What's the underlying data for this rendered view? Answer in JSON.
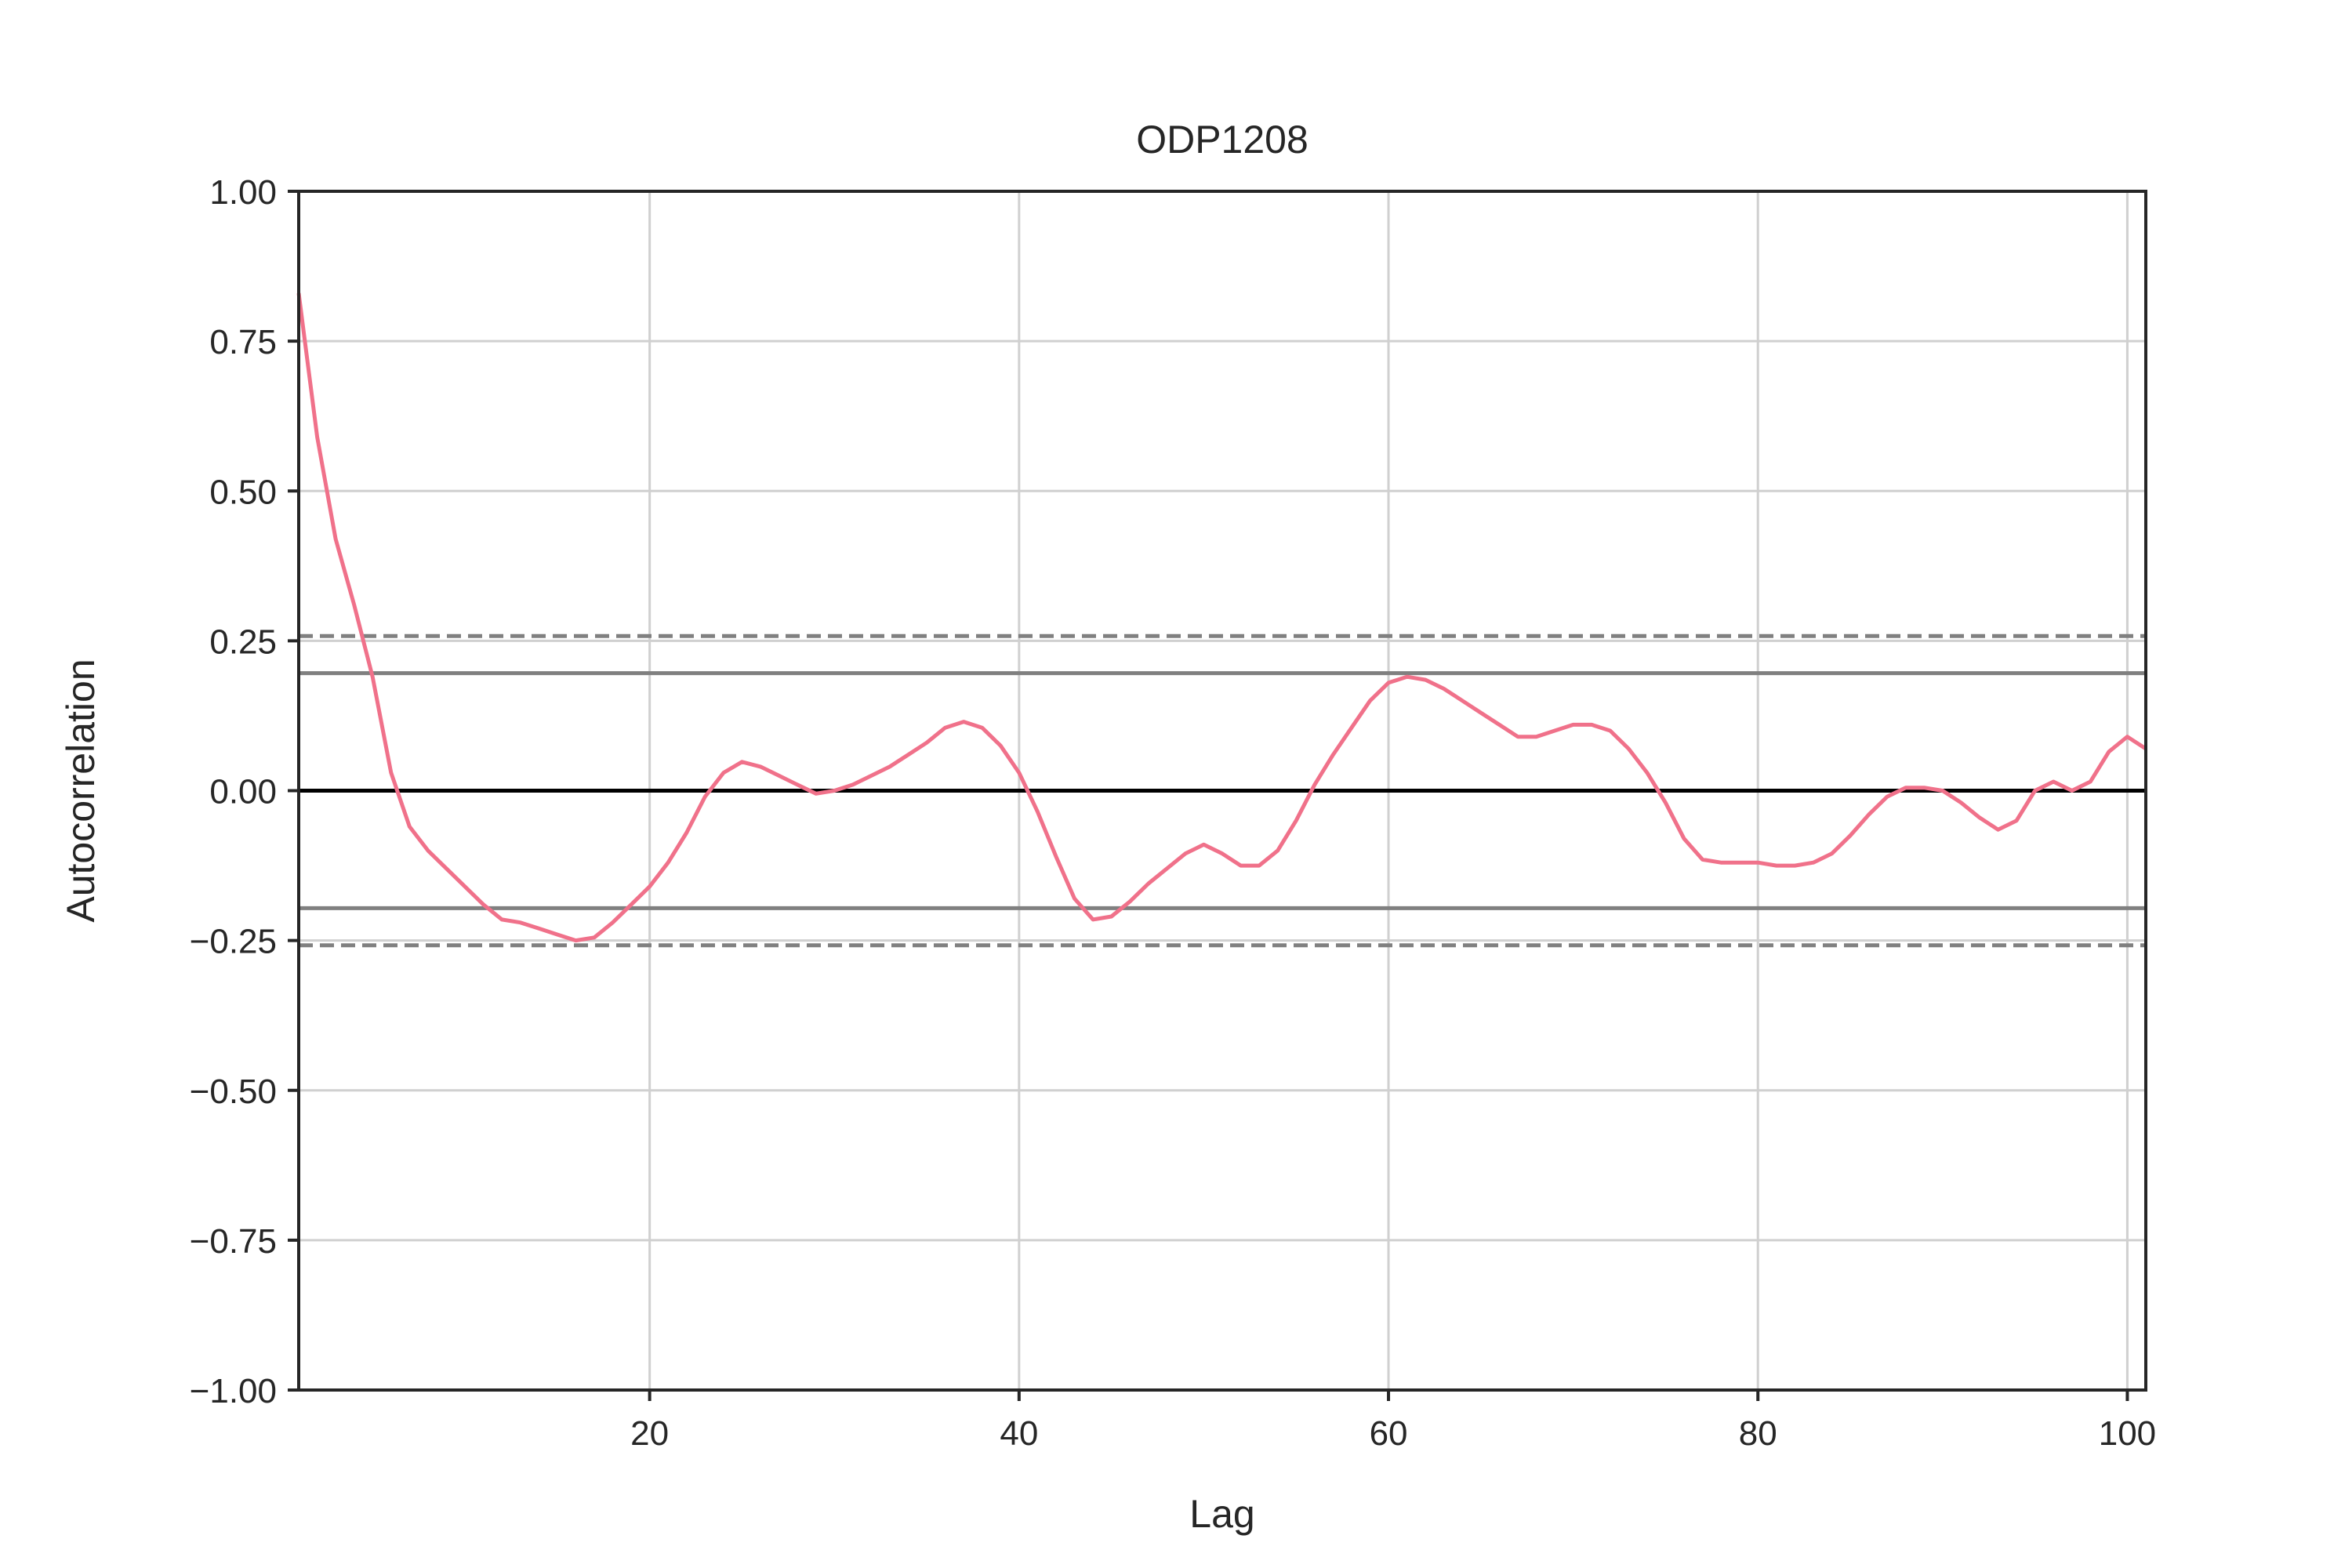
{
  "chart_data": {
    "type": "line",
    "title": "ODP1208",
    "xlabel": "Lag",
    "ylabel": "Autocorrelation",
    "xlim": [
      1,
      101
    ],
    "ylim": [
      -1.0,
      1.0
    ],
    "grid": true,
    "x_ticks": [
      20,
      40,
      60,
      80,
      100
    ],
    "y_ticks": [
      1.0,
      0.75,
      0.5,
      0.25,
      0.0,
      -0.25,
      -0.5,
      -0.75,
      -1.0
    ],
    "x_tick_labels": [
      "20",
      "40",
      "60",
      "80",
      "100"
    ],
    "y_tick_labels": [
      "1.00",
      "0.75",
      "0.50",
      "0.25",
      "0.00",
      "−0.25",
      "−0.50",
      "−0.75",
      "−1.00"
    ],
    "confidence_bands": [
      {
        "value": 0.196,
        "style": "solid",
        "color": "#808080"
      },
      {
        "value": -0.196,
        "style": "solid",
        "color": "#808080"
      },
      {
        "value": 0.258,
        "style": "dashed",
        "color": "#808080"
      },
      {
        "value": -0.258,
        "style": "dashed",
        "color": "#808080"
      }
    ],
    "zero_line": {
      "value": 0.0,
      "color": "#000000"
    },
    "series": [
      {
        "color": "#f0718a",
        "x": [
          1,
          2,
          3,
          4,
          5,
          6,
          7,
          8,
          9,
          10,
          11,
          12,
          13,
          14,
          15,
          16,
          17,
          18,
          19,
          20,
          21,
          22,
          23,
          24,
          25,
          26,
          27,
          28,
          29,
          30,
          31,
          32,
          33,
          34,
          35,
          36,
          37,
          38,
          39,
          40,
          41,
          42,
          43,
          44,
          45,
          46,
          47,
          48,
          49,
          50,
          51,
          52,
          53,
          54,
          55,
          56,
          57,
          58,
          59,
          60,
          61,
          62,
          63,
          64,
          65,
          66,
          67,
          68,
          69,
          70,
          71,
          72,
          73,
          74,
          75,
          76,
          77,
          78,
          79,
          80,
          81,
          82,
          83,
          84,
          85,
          86,
          87,
          88,
          89,
          90,
          91,
          92,
          93,
          94,
          95,
          96,
          97,
          98,
          99,
          100,
          101
        ],
        "y": [
          0.83,
          0.59,
          0.42,
          0.31,
          0.19,
          0.03,
          -0.06,
          -0.1,
          -0.13,
          -0.16,
          -0.19,
          -0.215,
          -0.22,
          -0.23,
          -0.24,
          -0.25,
          -0.245,
          -0.22,
          -0.19,
          -0.16,
          -0.12,
          -0.07,
          -0.01,
          0.03,
          0.048,
          0.04,
          0.025,
          0.01,
          -0.005,
          0.0,
          0.01,
          0.025,
          0.04,
          0.06,
          0.08,
          0.105,
          0.115,
          0.105,
          0.075,
          0.03,
          -0.035,
          -0.11,
          -0.18,
          -0.215,
          -0.21,
          -0.185,
          -0.155,
          -0.13,
          -0.105,
          -0.09,
          -0.105,
          -0.125,
          -0.125,
          -0.1,
          -0.05,
          0.01,
          0.06,
          0.105,
          0.15,
          0.18,
          0.19,
          0.185,
          0.17,
          0.15,
          0.13,
          0.11,
          0.09,
          0.09,
          0.1,
          0.11,
          0.11,
          0.1,
          0.07,
          0.03,
          -0.02,
          -0.08,
          -0.115,
          -0.12,
          -0.12,
          -0.12,
          -0.125,
          -0.125,
          -0.12,
          -0.105,
          -0.075,
          -0.04,
          -0.01,
          0.005,
          0.005,
          0.0,
          -0.02,
          -0.045,
          -0.065,
          -0.05,
          0.0,
          0.015,
          0.0,
          0.015,
          0.065,
          0.09,
          0.07
        ]
      }
    ]
  }
}
